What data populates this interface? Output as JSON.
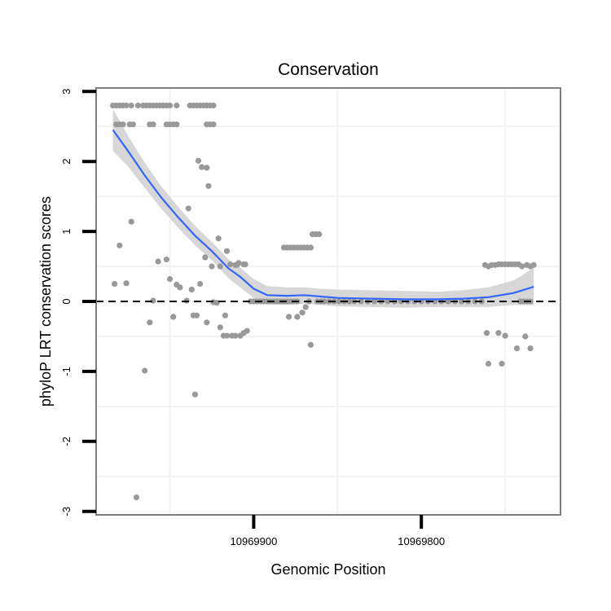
{
  "chart_data": {
    "type": "scatter",
    "title": "Conservation",
    "xlabel": "Genomic Position",
    "ylabel": "phyloP LRT conservation scores",
    "x_reversed": true,
    "xlim": [
      10969994,
      10969717
    ],
    "ylim": [
      -3.05,
      3.05
    ],
    "x_ticks": [
      {
        "value": 10969900,
        "label": "10969900"
      },
      {
        "value": 10969800,
        "label": "10969800"
      }
    ],
    "y_ticks": [
      {
        "value": 3,
        "label": "3"
      },
      {
        "value": 2,
        "label": "2"
      },
      {
        "value": 1,
        "label": "1"
      },
      {
        "value": 0,
        "label": "0"
      },
      {
        "value": -1,
        "label": "-1"
      },
      {
        "value": -2,
        "label": "-2"
      },
      {
        "value": -3,
        "label": "-3"
      }
    ],
    "x_minor_gridlines": [
      10969950,
      10969850,
      10969750
    ],
    "y_minor_gridlines": [
      2.5,
      1.5,
      0.5,
      -0.5,
      -1.5,
      -2.5
    ],
    "reference_line": {
      "y": 0,
      "style": "dashed",
      "color": "#000000"
    },
    "colors": {
      "points": "#999999",
      "smooth_line": "#3366ff",
      "confidence_band": "#d3d3d3",
      "panel_border": "#7f7f7f",
      "gridline": "#f2f2f2"
    },
    "series": [
      {
        "name": "phyloP scores",
        "points": [
          [
            10969984,
            2.8
          ],
          [
            10969982,
            2.8
          ],
          [
            10969980,
            2.8
          ],
          [
            10969978,
            2.8
          ],
          [
            10969976,
            2.8
          ],
          [
            10969973,
            2.8
          ],
          [
            10969969,
            2.8
          ],
          [
            10969966,
            2.8
          ],
          [
            10969964,
            2.8
          ],
          [
            10969962,
            2.8
          ],
          [
            10969960,
            2.8
          ],
          [
            10969958,
            2.8
          ],
          [
            10969956,
            2.8
          ],
          [
            10969954,
            2.8
          ],
          [
            10969952,
            2.8
          ],
          [
            10969950,
            2.8
          ],
          [
            10969946,
            2.8
          ],
          [
            10969938,
            2.8
          ],
          [
            10969936,
            2.8
          ],
          [
            10969934,
            2.8
          ],
          [
            10969932,
            2.8
          ],
          [
            10969930,
            2.8
          ],
          [
            10969928,
            2.8
          ],
          [
            10969926,
            2.8
          ],
          [
            10969924,
            2.8
          ],
          [
            10969982,
            2.53
          ],
          [
            10969980,
            2.53
          ],
          [
            10969978,
            2.53
          ],
          [
            10969974,
            2.53
          ],
          [
            10969972,
            2.53
          ],
          [
            10969962,
            2.53
          ],
          [
            10969960,
            2.53
          ],
          [
            10969952,
            2.53
          ],
          [
            10969950,
            2.53
          ],
          [
            10969948,
            2.53
          ],
          [
            10969946,
            2.53
          ],
          [
            10969928,
            2.53
          ],
          [
            10969926,
            2.53
          ],
          [
            10969924,
            2.53
          ],
          [
            10969983,
            0.25
          ],
          [
            10969980,
            0.8
          ],
          [
            10969976,
            0.26
          ],
          [
            10969973,
            1.14
          ],
          [
            10969970,
            -2.8
          ],
          [
            10969965,
            -0.99
          ],
          [
            10969962,
            -0.3
          ],
          [
            10969960,
            0.01
          ],
          [
            10969957,
            0.57
          ],
          [
            10969952,
            0.6
          ],
          [
            10969950,
            0.32
          ],
          [
            10969948,
            -0.22
          ],
          [
            10969946,
            0.24
          ],
          [
            10969944,
            0.2
          ],
          [
            10969940,
            0.01
          ],
          [
            10969939,
            1.33
          ],
          [
            10969937,
            0.17
          ],
          [
            10969936,
            -0.2
          ],
          [
            10969935,
            -1.33
          ],
          [
            10969934,
            -0.2
          ],
          [
            10969933,
            2.01
          ],
          [
            10969932,
            0.25
          ],
          [
            10969931,
            1.92
          ],
          [
            10969929,
            0.63
          ],
          [
            10969928,
            -0.3
          ],
          [
            10969928,
            1.91
          ],
          [
            10969927,
            1.65
          ],
          [
            10969925,
            0.5
          ],
          [
            10969924,
            -0.01
          ],
          [
            10969922,
            -0.02
          ],
          [
            10969921,
            0.9
          ],
          [
            10969920,
            0.5
          ],
          [
            10969920,
            -0.37
          ],
          [
            10969918,
            -0.49
          ],
          [
            10969917,
            -0.2
          ],
          [
            10969916,
            -0.49
          ],
          [
            10969916,
            0.72
          ],
          [
            10969914,
            0.53
          ],
          [
            10969913,
            -0.49
          ],
          [
            10969911,
            -0.49
          ],
          [
            10969911,
            0.52
          ],
          [
            10969910,
            0.52
          ],
          [
            10969909,
            0.55
          ],
          [
            10969908,
            -0.49
          ],
          [
            10969906,
            0.53
          ],
          [
            10969906,
            -0.45
          ],
          [
            10969905,
            0.53
          ],
          [
            10969904,
            -0.42
          ],
          [
            10969902,
            0.0
          ],
          [
            10969900,
            0.0
          ],
          [
            10969898,
            0.0
          ],
          [
            10969896,
            0.0
          ],
          [
            10969894,
            0.0
          ],
          [
            10969892,
            0.0
          ],
          [
            10969890,
            0.0
          ],
          [
            10969888,
            0.0
          ],
          [
            10969886,
            0.0
          ],
          [
            10969884,
            0.0
          ],
          [
            10969882,
            0.0
          ],
          [
            10969880,
            0.0
          ],
          [
            10969878,
            0.0
          ],
          [
            10969876,
            0.0
          ],
          [
            10969874,
            0.0
          ],
          [
            10969882,
            0.77
          ],
          [
            10969880,
            0.77
          ],
          [
            10969878,
            0.77
          ],
          [
            10969876,
            0.77
          ],
          [
            10969874,
            0.77
          ],
          [
            10969872,
            0.77
          ],
          [
            10969870,
            0.77
          ],
          [
            10969868,
            0.77
          ],
          [
            10969866,
            0.77
          ],
          [
            10969879,
            -0.22
          ],
          [
            10969874,
            -0.22
          ],
          [
            10969871,
            -0.16
          ],
          [
            10969869,
            -0.08
          ],
          [
            10969867,
            0.0
          ],
          [
            10969866,
            -0.62
          ],
          [
            10969865,
            0.96
          ],
          [
            10969863,
            0.96
          ],
          [
            10969861,
            0.96
          ],
          [
            10969862,
            0.0
          ],
          [
            10969860,
            0.0
          ],
          [
            10969858,
            0.0
          ],
          [
            10969855,
            0.0
          ],
          [
            10969852,
            0.0
          ],
          [
            10969849,
            0.0
          ],
          [
            10969846,
            0.0
          ],
          [
            10969843,
            0.0
          ],
          [
            10969840,
            0.0
          ],
          [
            10969836,
            0.0
          ],
          [
            10969832,
            0.0
          ],
          [
            10969828,
            0.0
          ],
          [
            10969824,
            0.0
          ],
          [
            10969820,
            0.0
          ],
          [
            10969816,
            0.0
          ],
          [
            10969812,
            0.0
          ],
          [
            10969808,
            0.0
          ],
          [
            10969804,
            0.0
          ],
          [
            10969800,
            0.0
          ],
          [
            10969796,
            0.0
          ],
          [
            10969792,
            0.0
          ],
          [
            10969788,
            0.0
          ],
          [
            10969784,
            0.0
          ],
          [
            10969780,
            0.0
          ],
          [
            10969776,
            0.0
          ],
          [
            10969772,
            0.0
          ],
          [
            10969768,
            0.0
          ],
          [
            10969764,
            0.0
          ],
          [
            10969762,
            0.52
          ],
          [
            10969760,
            0.5
          ],
          [
            10969758,
            0.52
          ],
          [
            10969756,
            0.52
          ],
          [
            10969754,
            0.53
          ],
          [
            10969752,
            0.53
          ],
          [
            10969750,
            0.53
          ],
          [
            10969748,
            0.53
          ],
          [
            10969746,
            0.53
          ],
          [
            10969744,
            0.53
          ],
          [
            10969742,
            0.53
          ],
          [
            10969740,
            0.5
          ],
          [
            10969761,
            -0.45
          ],
          [
            10969760,
            -0.89
          ],
          [
            10969754,
            -0.45
          ],
          [
            10969752,
            -0.89
          ],
          [
            10969750,
            -0.49
          ],
          [
            10969743,
            -0.67
          ],
          [
            10969738,
            -0.5
          ],
          [
            10969735,
            -0.67
          ],
          [
            10969741,
            0.0
          ],
          [
            10969739,
            0.0
          ],
          [
            10969737,
            0.0
          ],
          [
            10969735,
            0.0
          ],
          [
            10969737,
            0.52
          ],
          [
            10969735,
            0.5
          ],
          [
            10969733,
            0.52
          ]
        ]
      }
    ],
    "smooth": {
      "name": "loess fit",
      "points": [
        [
          10969984,
          2.45,
          2.15,
          2.75
        ],
        [
          10969975,
          2.15,
          1.93,
          2.37
        ],
        [
          10969965,
          1.8,
          1.62,
          1.98
        ],
        [
          10969955,
          1.48,
          1.32,
          1.64
        ],
        [
          10969945,
          1.2,
          1.05,
          1.35
        ],
        [
          10969935,
          0.94,
          0.8,
          1.08
        ],
        [
          10969925,
          0.72,
          0.59,
          0.85
        ],
        [
          10969915,
          0.47,
          0.33,
          0.6
        ],
        [
          10969908,
          0.35,
          0.2,
          0.48
        ],
        [
          10969900,
          0.18,
          0.05,
          0.32
        ],
        [
          10969892,
          0.09,
          -0.04,
          0.22
        ],
        [
          10969880,
          0.08,
          -0.05,
          0.2
        ],
        [
          10969870,
          0.09,
          -0.03,
          0.2
        ],
        [
          10969860,
          0.07,
          -0.05,
          0.18
        ],
        [
          10969850,
          0.05,
          -0.07,
          0.17
        ],
        [
          10969830,
          0.04,
          -0.08,
          0.16
        ],
        [
          10969810,
          0.03,
          -0.09,
          0.15
        ],
        [
          10969790,
          0.03,
          -0.08,
          0.14
        ],
        [
          10969775,
          0.04,
          -0.08,
          0.16
        ],
        [
          10969760,
          0.06,
          -0.08,
          0.2
        ],
        [
          10969745,
          0.12,
          -0.05,
          0.3
        ],
        [
          10969733,
          0.21,
          -0.05,
          0.48
        ]
      ]
    }
  }
}
